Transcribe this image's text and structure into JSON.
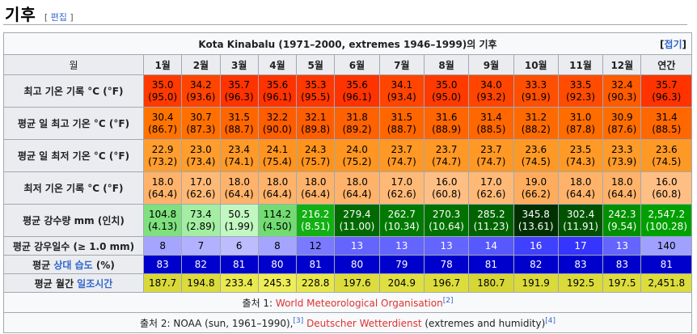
{
  "section": {
    "title": "기후",
    "edit_open": "[ ",
    "edit_label": "편집",
    "edit_close": " ]"
  },
  "table": {
    "caption": "Kota Kinabalu (1971–2000, extremes 1946–1999)의 기후",
    "collapse_open": "[",
    "collapse_label": "접기",
    "collapse_close": "]",
    "month_header": "월",
    "months": [
      "1월",
      "2월",
      "3월",
      "4월",
      "5월",
      "6월",
      "7월",
      "8월",
      "9월",
      "10월",
      "11월",
      "12월"
    ],
    "annual_header": "연간",
    "rows": [
      {
        "label": "최고 기온 기록 °C (°F)",
        "kind": "temp",
        "cells": [
          {
            "v": "35.0",
            "s": "(95.0)",
            "bg": "#ff3a00",
            "fg": "#000000"
          },
          {
            "v": "34.2",
            "s": "(93.6)",
            "bg": "#ff4400",
            "fg": "#000000"
          },
          {
            "v": "35.7",
            "s": "(96.3)",
            "bg": "#ff3300",
            "fg": "#000000"
          },
          {
            "v": "35.6",
            "s": "(96.1)",
            "bg": "#ff3300",
            "fg": "#000000"
          },
          {
            "v": "35.3",
            "s": "(95.5)",
            "bg": "#ff3700",
            "fg": "#000000"
          },
          {
            "v": "35.6",
            "s": "(96.1)",
            "bg": "#ff3300",
            "fg": "#000000"
          },
          {
            "v": "34.1",
            "s": "(93.4)",
            "bg": "#ff4500",
            "fg": "#000000"
          },
          {
            "v": "35.0",
            "s": "(95.0)",
            "bg": "#ff3a00",
            "fg": "#000000"
          },
          {
            "v": "34.0",
            "s": "(93.2)",
            "bg": "#ff4500",
            "fg": "#000000"
          },
          {
            "v": "33.3",
            "s": "(91.9)",
            "bg": "#ff4f00",
            "fg": "#000000"
          },
          {
            "v": "33.5",
            "s": "(92.3)",
            "bg": "#ff4c00",
            "fg": "#000000"
          },
          {
            "v": "32.4",
            "s": "(90.3)",
            "bg": "#ff5b00",
            "fg": "#000000"
          },
          {
            "v": "35.7",
            "s": "(96.3)",
            "bg": "#ff3300",
            "fg": "#000000"
          }
        ]
      },
      {
        "label": "평균 일 최고 기온 °C (°F)",
        "kind": "temp",
        "cells": [
          {
            "v": "30.4",
            "s": "(86.7)",
            "bg": "#ff7400",
            "fg": "#000000"
          },
          {
            "v": "30.7",
            "s": "(87.3)",
            "bg": "#ff7000",
            "fg": "#000000"
          },
          {
            "v": "31.5",
            "s": "(88.7)",
            "bg": "#ff6600",
            "fg": "#000000"
          },
          {
            "v": "32.2",
            "s": "(90.0)",
            "bg": "#ff5d00",
            "fg": "#000000"
          },
          {
            "v": "32.1",
            "s": "(89.8)",
            "bg": "#ff5e00",
            "fg": "#000000"
          },
          {
            "v": "31.8",
            "s": "(89.2)",
            "bg": "#ff6200",
            "fg": "#000000"
          },
          {
            "v": "31.5",
            "s": "(88.7)",
            "bg": "#ff6600",
            "fg": "#000000"
          },
          {
            "v": "31.6",
            "s": "(88.9)",
            "bg": "#ff6500",
            "fg": "#000000"
          },
          {
            "v": "31.4",
            "s": "(88.5)",
            "bg": "#ff6700",
            "fg": "#000000"
          },
          {
            "v": "31.2",
            "s": "(88.2)",
            "bg": "#ff6a00",
            "fg": "#000000"
          },
          {
            "v": "31.0",
            "s": "(87.8)",
            "bg": "#ff6c00",
            "fg": "#000000"
          },
          {
            "v": "30.9",
            "s": "(87.6)",
            "bg": "#ff6d00",
            "fg": "#000000"
          },
          {
            "v": "31.4",
            "s": "(88.5)",
            "bg": "#ff6700",
            "fg": "#000000"
          }
        ]
      },
      {
        "label": "평균 일 최저 기온 °C (°F)",
        "kind": "temp",
        "cells": [
          {
            "v": "22.9",
            "s": "(73.2)",
            "bg": "#ff9e30",
            "fg": "#000000"
          },
          {
            "v": "23.0",
            "s": "(73.4)",
            "bg": "#ff9d2d",
            "fg": "#000000"
          },
          {
            "v": "23.4",
            "s": "(74.1)",
            "bg": "#ff9a28",
            "fg": "#000000"
          },
          {
            "v": "24.1",
            "s": "(75.4)",
            "bg": "#ff9520",
            "fg": "#000000"
          },
          {
            "v": "24.3",
            "s": "(75.7)",
            "bg": "#ff941d",
            "fg": "#000000"
          },
          {
            "v": "24.0",
            "s": "(75.2)",
            "bg": "#ff9621",
            "fg": "#000000"
          },
          {
            "v": "23.7",
            "s": "(74.7)",
            "bg": "#ff9825",
            "fg": "#000000"
          },
          {
            "v": "23.7",
            "s": "(74.7)",
            "bg": "#ff9825",
            "fg": "#000000"
          },
          {
            "v": "23.7",
            "s": "(74.7)",
            "bg": "#ff9825",
            "fg": "#000000"
          },
          {
            "v": "23.6",
            "s": "(74.5)",
            "bg": "#ff9926",
            "fg": "#000000"
          },
          {
            "v": "23.5",
            "s": "(74.3)",
            "bg": "#ff9a27",
            "fg": "#000000"
          },
          {
            "v": "23.3",
            "s": "(73.9)",
            "bg": "#ff9b2a",
            "fg": "#000000"
          },
          {
            "v": "23.6",
            "s": "(74.5)",
            "bg": "#ff9926",
            "fg": "#000000"
          }
        ]
      },
      {
        "label": "최저 기온 기록 °C (°F)",
        "kind": "temp",
        "cells": [
          {
            "v": "18.0",
            "s": "(64.4)",
            "bg": "#ffb36a",
            "fg": "#000000"
          },
          {
            "v": "17.0",
            "s": "(62.6)",
            "bg": "#ffb977",
            "fg": "#000000"
          },
          {
            "v": "18.0",
            "s": "(64.4)",
            "bg": "#ffb36a",
            "fg": "#000000"
          },
          {
            "v": "18.0",
            "s": "(64.4)",
            "bg": "#ffb36a",
            "fg": "#000000"
          },
          {
            "v": "18.0",
            "s": "(64.4)",
            "bg": "#ffb36a",
            "fg": "#000000"
          },
          {
            "v": "18.0",
            "s": "(64.4)",
            "bg": "#ffb36a",
            "fg": "#000000"
          },
          {
            "v": "17.0",
            "s": "(62.6)",
            "bg": "#ffb977",
            "fg": "#000000"
          },
          {
            "v": "16.0",
            "s": "(60.8)",
            "bg": "#ffbf84",
            "fg": "#000000"
          },
          {
            "v": "17.0",
            "s": "(62.6)",
            "bg": "#ffb977",
            "fg": "#000000"
          },
          {
            "v": "19.0",
            "s": "(66.2)",
            "bg": "#ffad5d",
            "fg": "#000000"
          },
          {
            "v": "18.0",
            "s": "(64.4)",
            "bg": "#ffb36a",
            "fg": "#000000"
          },
          {
            "v": "18.0",
            "s": "(64.4)",
            "bg": "#ffb36a",
            "fg": "#000000"
          },
          {
            "v": "16.0",
            "s": "(60.8)",
            "bg": "#ffbf84",
            "fg": "#000000"
          }
        ]
      },
      {
        "label": "평균 강수량 mm (인치)",
        "kind": "precip",
        "cells": [
          {
            "v": "104.8",
            "s": "(4.13)",
            "bg": "#7ee07e",
            "fg": "#000000"
          },
          {
            "v": "73.4",
            "s": "(2.89)",
            "bg": "#a3eea3",
            "fg": "#000000"
          },
          {
            "v": "50.5",
            "s": "(1.99)",
            "bg": "#c1f7c1",
            "fg": "#000000"
          },
          {
            "v": "114.2",
            "s": "(4.50)",
            "bg": "#72dc72",
            "fg": "#000000"
          },
          {
            "v": "216.2",
            "s": "(8.51)",
            "bg": "#12b012",
            "fg": "#ffffff"
          },
          {
            "v": "279.4",
            "s": "(11.00)",
            "bg": "#006a00",
            "fg": "#ffffff"
          },
          {
            "v": "262.7",
            "s": "(10.34)",
            "bg": "#007a00",
            "fg": "#ffffff"
          },
          {
            "v": "270.3",
            "s": "(10.64)",
            "bg": "#007200",
            "fg": "#ffffff"
          },
          {
            "v": "285.2",
            "s": "(11.23)",
            "bg": "#006300",
            "fg": "#ffffff"
          },
          {
            "v": "345.8",
            "s": "(13.61)",
            "bg": "#003000",
            "fg": "#ffffff"
          },
          {
            "v": "302.4",
            "s": "(11.91)",
            "bg": "#005200",
            "fg": "#ffffff"
          },
          {
            "v": "242.3",
            "s": "(9.54)",
            "bg": "#009000",
            "fg": "#ffffff"
          },
          {
            "v": "2,547.2",
            "s": "(100.28)",
            "bg": "#00a000",
            "fg": "#ffffff"
          }
        ]
      },
      {
        "label": "평균 강우일수 (≥ 1.0 mm)",
        "kind": "days",
        "cells": [
          {
            "v": "8",
            "bg": "#a5a5ff",
            "fg": "#000000"
          },
          {
            "v": "7",
            "bg": "#b1b1ff",
            "fg": "#000000"
          },
          {
            "v": "6",
            "bg": "#bcbcff",
            "fg": "#000000"
          },
          {
            "v": "8",
            "bg": "#a5a5ff",
            "fg": "#000000"
          },
          {
            "v": "12",
            "bg": "#7a7aff",
            "fg": "#000000"
          },
          {
            "v": "13",
            "bg": "#6464ff",
            "fg": "#ffffff"
          },
          {
            "v": "13",
            "bg": "#6464ff",
            "fg": "#ffffff"
          },
          {
            "v": "13",
            "bg": "#6464ff",
            "fg": "#ffffff"
          },
          {
            "v": "14",
            "bg": "#5858ff",
            "fg": "#ffffff"
          },
          {
            "v": "16",
            "bg": "#4040ff",
            "fg": "#ffffff"
          },
          {
            "v": "17",
            "bg": "#3535ff",
            "fg": "#ffffff"
          },
          {
            "v": "13",
            "bg": "#6464ff",
            "fg": "#ffffff"
          },
          {
            "v": "140",
            "bg": "#a0a0ff",
            "fg": "#000000"
          }
        ]
      },
      {
        "label_prefix": "평균 ",
        "label_link": "상대 습도",
        "label_suffix": " (%)",
        "kind": "humid",
        "cells": [
          {
            "v": "83",
            "bg": "#0000cc",
            "fg": "#ffffff"
          },
          {
            "v": "82",
            "bg": "#0000cc",
            "fg": "#ffffff"
          },
          {
            "v": "81",
            "bg": "#0000cc",
            "fg": "#ffffff"
          },
          {
            "v": "80",
            "bg": "#0000cc",
            "fg": "#ffffff"
          },
          {
            "v": "81",
            "bg": "#0000cc",
            "fg": "#ffffff"
          },
          {
            "v": "80",
            "bg": "#0000cc",
            "fg": "#ffffff"
          },
          {
            "v": "79",
            "bg": "#0000cc",
            "fg": "#ffffff"
          },
          {
            "v": "78",
            "bg": "#0000cc",
            "fg": "#ffffff"
          },
          {
            "v": "81",
            "bg": "#0000cc",
            "fg": "#ffffff"
          },
          {
            "v": "82",
            "bg": "#0000cc",
            "fg": "#ffffff"
          },
          {
            "v": "83",
            "bg": "#0000cc",
            "fg": "#ffffff"
          },
          {
            "v": "83",
            "bg": "#0000cc",
            "fg": "#ffffff"
          },
          {
            "v": "81",
            "bg": "#0000cc",
            "fg": "#ffffff"
          }
        ]
      },
      {
        "label_prefix": "평균 월간 ",
        "label_link": "일조시간",
        "label_suffix": "",
        "kind": "sun",
        "cells": [
          {
            "v": "187.7",
            "bg": "#d8d83a",
            "fg": "#000000"
          },
          {
            "v": "194.8",
            "bg": "#dbdb3c",
            "fg": "#000000"
          },
          {
            "v": "233.4",
            "bg": "#e9e950",
            "fg": "#000000"
          },
          {
            "v": "245.3",
            "bg": "#eded58",
            "fg": "#000000"
          },
          {
            "v": "228.8",
            "bg": "#e7e74c",
            "fg": "#000000"
          },
          {
            "v": "197.6",
            "bg": "#dcdc3e",
            "fg": "#000000"
          },
          {
            "v": "204.9",
            "bg": "#dfdf42",
            "fg": "#000000"
          },
          {
            "v": "196.7",
            "bg": "#dcdc3d",
            "fg": "#000000"
          },
          {
            "v": "180.7",
            "bg": "#d6d636",
            "fg": "#000000"
          },
          {
            "v": "191.9",
            "bg": "#dada3b",
            "fg": "#000000"
          },
          {
            "v": "192.5",
            "bg": "#dada3b",
            "fg": "#000000"
          },
          {
            "v": "197.5",
            "bg": "#dcdc3e",
            "fg": "#000000"
          },
          {
            "v": "2,451.8",
            "bg": "#dcdc3e",
            "fg": "#000000"
          }
        ]
      }
    ],
    "source1": {
      "prefix": "출처 1: ",
      "link": "World Meteorological Organisation",
      "ref": "[2]"
    },
    "source2": {
      "prefix": "출처 2: NOAA (sun, 1961–1990),",
      "ref1": "[3]",
      "mid": " ",
      "link": "Deutscher Wetterdienst",
      "suffix": " (extremes and humidity)",
      "ref2": "[4]"
    }
  }
}
